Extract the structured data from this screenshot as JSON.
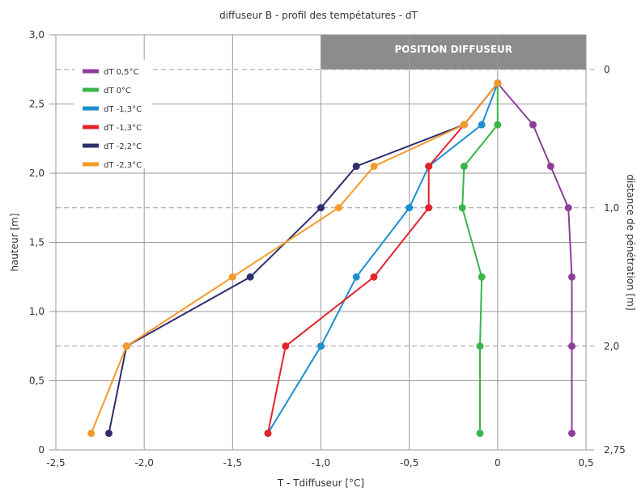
{
  "chart_data": {
    "type": "line",
    "title": "diffuseur B - profil des tempétatures - dT",
    "xlabel": "T - Tdiffuseur [°C]",
    "ylabel": "hauteur [m]",
    "y2label": "distance de pénétration [m]",
    "xlim": [
      -2.5,
      0.5
    ],
    "ylim": [
      0,
      3.0
    ],
    "xticks": [
      "-2,5",
      "-2,0",
      "-1,5",
      "-1,0",
      "-0,5",
      "0",
      "0,5"
    ],
    "yticks": [
      "0",
      "0,5",
      "1,0",
      "1,5",
      "2,0",
      "2,5",
      "3,0"
    ],
    "y2ticks": [
      "0",
      "1,0",
      "2,0",
      "2,75"
    ],
    "y2tick_heights": [
      2.75,
      1.75,
      0.75,
      0.0
    ],
    "grid": true,
    "legend_position": "top-left",
    "annotation": "POSITION DIFFUSEUR",
    "heights": [
      2.65,
      2.35,
      2.05,
      1.75,
      1.25,
      0.75,
      0.12
    ],
    "series": [
      {
        "name": "dT 0,5°C",
        "color": "#8e3f9a",
        "x": [
          0,
          0.2,
          0.3,
          0.4,
          0.42,
          0.42,
          0.42
        ]
      },
      {
        "name": "dT 0°C",
        "color": "#3ab54a",
        "x": [
          0,
          0,
          -0.19,
          -0.2,
          -0.09,
          -0.1,
          -0.1
        ]
      },
      {
        "name": "dT -1,3°C",
        "color": "#1b8fd0",
        "x": [
          0,
          -0.09,
          -0.39,
          -0.5,
          -0.8,
          -1.0,
          -1.3
        ]
      },
      {
        "name": "dT -1,3°C",
        "color": "#e3242b",
        "x": [
          0,
          -0.19,
          -0.39,
          -0.39,
          -0.7,
          -1.2,
          -1.3
        ]
      },
      {
        "name": "dT -2,2°C",
        "color": "#2e2e6e",
        "x": [
          0,
          -0.19,
          -0.8,
          -1.0,
          -1.4,
          -2.1,
          -2.2
        ]
      },
      {
        "name": "dT -2,3°C",
        "color": "#f39a2b",
        "x": [
          0,
          -0.19,
          -0.7,
          -0.9,
          -1.5,
          -2.1,
          -2.3
        ]
      }
    ]
  }
}
